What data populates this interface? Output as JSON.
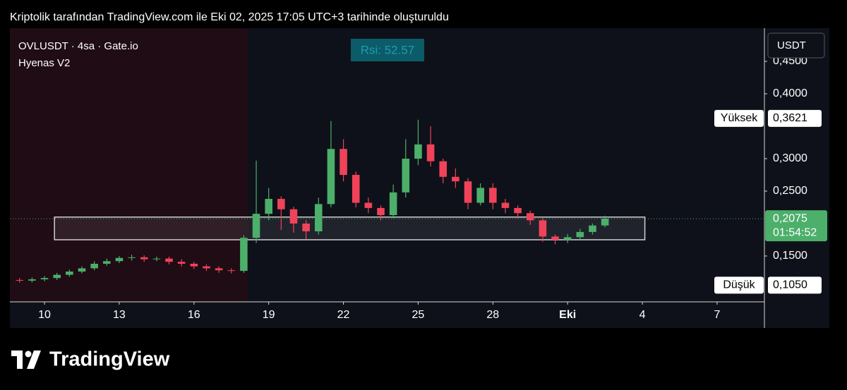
{
  "chart_data": {
    "type": "candlestick",
    "header": "Kriptolik tarafından TradingView.com ile Eki 02, 2025 17:05 UTC+3 tarihinde oluşturuldu",
    "symbol_label": "OVLUSDT · 4sa · Gate.io",
    "indicator": "Hyenas V2",
    "rsi_label": "Rsi: 52.57",
    "currency": "USDT",
    "brand": "TradingView",
    "x": [
      9,
      9.5,
      10,
      10.5,
      11,
      11.5,
      12,
      12.5,
      13,
      13.5,
      14,
      14.5,
      15,
      15.5,
      16,
      16.5,
      17,
      17.5,
      18,
      18.5,
      19,
      19.5,
      20,
      20.5,
      21,
      21.5,
      22,
      22.5,
      23,
      23.5,
      24,
      24.5,
      25,
      25.5,
      26,
      26.5,
      27,
      27.5,
      28,
      28.5,
      29,
      29.5,
      30,
      30.5,
      31,
      31.5,
      32,
      32.5
    ],
    "open": [
      0.113,
      0.112,
      0.114,
      0.116,
      0.121,
      0.126,
      0.131,
      0.138,
      0.142,
      0.147,
      0.148,
      0.145,
      0.146,
      0.141,
      0.138,
      0.134,
      0.131,
      0.128,
      0.127,
      0.178,
      0.215,
      0.238,
      0.222,
      0.2,
      0.188,
      0.23,
      0.315,
      0.275,
      0.232,
      0.224,
      0.213,
      0.248,
      0.3,
      0.322,
      0.296,
      0.272,
      0.265,
      0.232,
      0.255,
      0.232,
      0.224,
      0.216,
      0.205,
      0.18,
      0.175,
      0.179,
      0.187,
      0.197
    ],
    "high": [
      0.116,
      0.117,
      0.119,
      0.124,
      0.129,
      0.134,
      0.142,
      0.146,
      0.15,
      0.152,
      0.151,
      0.149,
      0.149,
      0.145,
      0.141,
      0.137,
      0.134,
      0.131,
      0.182,
      0.297,
      0.255,
      0.242,
      0.226,
      0.205,
      0.24,
      0.358,
      0.33,
      0.28,
      0.24,
      0.228,
      0.26,
      0.33,
      0.36,
      0.35,
      0.3,
      0.285,
      0.27,
      0.262,
      0.262,
      0.238,
      0.228,
      0.22,
      0.208,
      0.183,
      0.184,
      0.192,
      0.2,
      0.212
    ],
    "low": [
      0.109,
      0.109,
      0.111,
      0.113,
      0.118,
      0.123,
      0.128,
      0.135,
      0.139,
      0.143,
      0.141,
      0.142,
      0.137,
      0.134,
      0.13,
      0.127,
      0.124,
      0.123,
      0.124,
      0.17,
      0.205,
      0.19,
      0.186,
      0.176,
      0.183,
      0.225,
      0.265,
      0.225,
      0.216,
      0.205,
      0.208,
      0.24,
      0.29,
      0.288,
      0.262,
      0.255,
      0.222,
      0.228,
      0.222,
      0.216,
      0.208,
      0.198,
      0.172,
      0.168,
      0.17,
      0.175,
      0.183,
      0.194
    ],
    "close": [
      0.112,
      0.114,
      0.116,
      0.121,
      0.126,
      0.131,
      0.138,
      0.142,
      0.147,
      0.148,
      0.145,
      0.146,
      0.141,
      0.138,
      0.134,
      0.131,
      0.128,
      0.127,
      0.178,
      0.215,
      0.238,
      0.222,
      0.2,
      0.188,
      0.23,
      0.315,
      0.275,
      0.232,
      0.224,
      0.213,
      0.248,
      0.3,
      0.322,
      0.296,
      0.272,
      0.265,
      0.232,
      0.255,
      0.232,
      0.224,
      0.216,
      0.205,
      0.18,
      0.175,
      0.179,
      0.187,
      0.197,
      0.2075
    ],
    "up_color": "#4caf6a",
    "down_color": "#f0435a",
    "xlim": [
      8.61,
      38.9
    ],
    "xticks": [
      10,
      13,
      16,
      19,
      22,
      25,
      28,
      {
        "value": 31,
        "label": "Eki"
      },
      {
        "value": 34,
        "label": "4"
      },
      {
        "value": 37,
        "label": "7"
      }
    ],
    "ylim": [
      0.0793,
      0.5011
    ],
    "yticks": [
      {
        "value": 0.15,
        "label": "0,1500"
      },
      {
        "value": 0.25,
        "label": "0,2500"
      },
      {
        "value": 0.3,
        "label": "0,3000"
      },
      {
        "value": 0.4,
        "label": "0,4000"
      },
      {
        "value": 0.45,
        "label": "0,4500"
      }
    ],
    "markers": [
      {
        "name": "Yüksek",
        "value": 0.3621,
        "label": "0,3621"
      },
      {
        "name": "Düşük",
        "value": 0.105,
        "label": "0,1050"
      }
    ],
    "last_price": {
      "value": 0.2075,
      "label": "0,2075",
      "countdown": "01:54:52",
      "color": "#4caf6a"
    },
    "zone_x": [
      10.4,
      34.1
    ],
    "zone_y": [
      0.175,
      0.21
    ],
    "shade_end": 18.15
  }
}
